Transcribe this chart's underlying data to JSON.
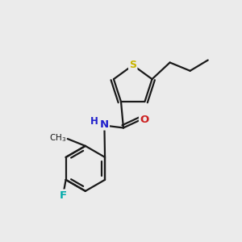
{
  "background_color": "#ebebeb",
  "bond_color": "#1a1a1a",
  "S_color": "#c8b400",
  "N_color": "#2020cc",
  "O_color": "#cc2020",
  "F_color": "#00aaaa",
  "text_color": "#1a1a1a",
  "figsize": [
    3.0,
    3.0
  ],
  "dpi": 100,
  "xlim": [
    0,
    10
  ],
  "ylim": [
    0,
    10
  ]
}
